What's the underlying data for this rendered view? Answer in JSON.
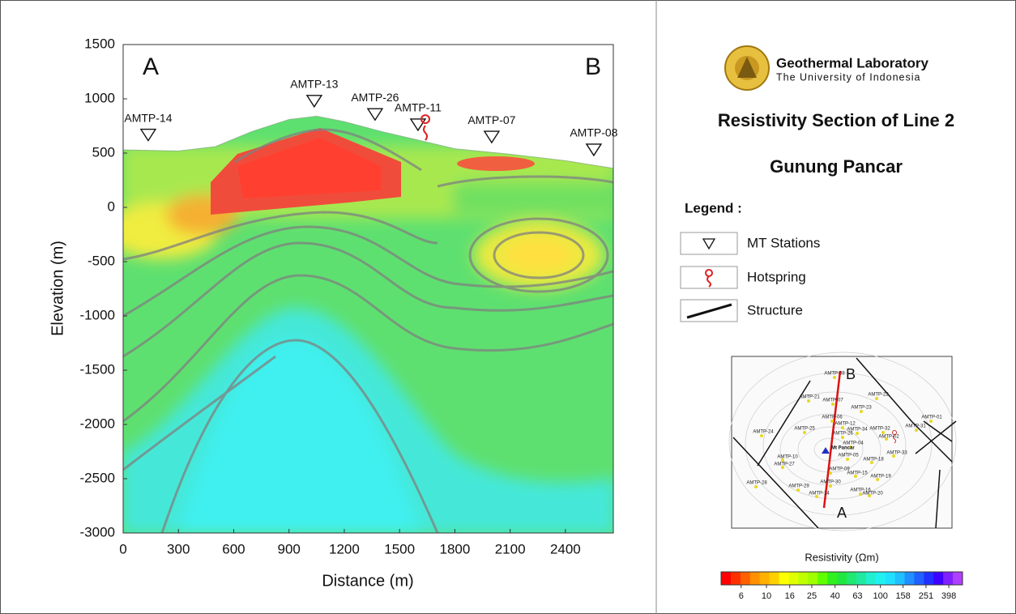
{
  "header": {
    "lab": "Geothermal Laboratory",
    "university": "The University of Indonesia",
    "title": "Resistivity Section of Line 2",
    "subtitle": "Gunung Pancar"
  },
  "legend": {
    "title": "Legend :",
    "items": [
      "MT Stations",
      "Hotspring",
      "Structure"
    ]
  },
  "map": {
    "stations": [
      "AMTP-08",
      "AMTP-21",
      "AMTP-07",
      "AMTP-22",
      "AMTP-23",
      "AMTP-01",
      "AMTP-06",
      "AMTP-31",
      "AMTP-12",
      "AMTP-25",
      "AMTP-34",
      "AMTP-32",
      "AMTP-24",
      "AMTP-26",
      "AMTP-02",
      "AMTP-04",
      "AMTP-33",
      "AMTP-05",
      "AMTP-10",
      "AMTP-18",
      "AMTP-27",
      "AMTP-09",
      "AMTP-15",
      "AMTP-19",
      "AMTP-30",
      "AMTP-28",
      "AMTP-29",
      "AMTP-14",
      "AMTP-16",
      "AMTP-20"
    ],
    "peak": "Mt Pancar",
    "ends": [
      "A",
      "B"
    ]
  },
  "chart_data": {
    "type": "section",
    "xlabel": "Distance (m)",
    "ylabel": "Elevation (m)",
    "xlim": [
      0,
      2660
    ],
    "ylim": [
      -3000,
      1500
    ],
    "xticks": [
      0,
      300,
      600,
      900,
      1200,
      1500,
      1800,
      2100,
      2400
    ],
    "yticks": [
      -3000,
      -2500,
      -2000,
      -1500,
      -1000,
      -500,
      0,
      500,
      1000,
      1500
    ],
    "section_ends": [
      "A",
      "B"
    ],
    "topography": {
      "x": [
        0,
        300,
        500,
        700,
        900,
        1050,
        1200,
        1400,
        1600,
        1800,
        2100,
        2400,
        2660
      ],
      "elevation": [
        530,
        520,
        560,
        700,
        810,
        840,
        790,
        700,
        620,
        540,
        490,
        430,
        360
      ]
    },
    "stations": {
      "names": [
        "AMTP-14",
        "AMTP-13",
        "AMTP-26",
        "AMTP-11",
        "AMTP-07",
        "AMTP-08"
      ],
      "x": [
        136,
        1037,
        1367,
        1600,
        2000,
        2554
      ]
    },
    "hotspring": {
      "x": 1640
    },
    "colorbar": {
      "label": "Resistivity (Ωm)",
      "log": true,
      "lim": [
        4,
        525
      ],
      "ticks": [
        6,
        10,
        16,
        25,
        40,
        63,
        100,
        158,
        251,
        398
      ],
      "colors": [
        "#ff0000",
        "#ff3000",
        "#ff6000",
        "#ff9000",
        "#ffb000",
        "#ffd000",
        "#ffff00",
        "#e0ff00",
        "#c0ff00",
        "#a0ff00",
        "#60ff00",
        "#30f020",
        "#20e840",
        "#20e870",
        "#20e8a0",
        "#20f0d0",
        "#20f0f0",
        "#20e0ff",
        "#20c0ff",
        "#2090ff",
        "#2060ff",
        "#2030ff",
        "#4000ff",
        "#8020ff",
        "#b040ff"
      ]
    }
  }
}
